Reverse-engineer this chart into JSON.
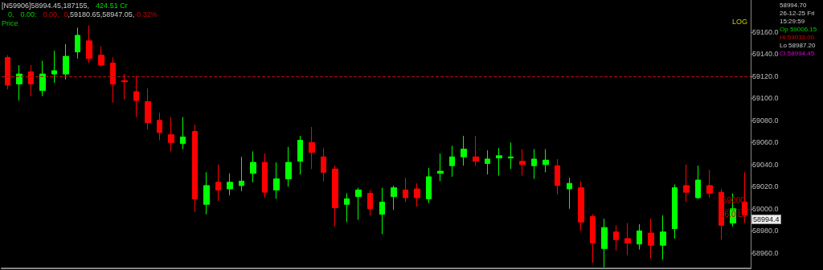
{
  "chart_data": {
    "type": "candlestick",
    "title": "[N59906]58994.45,187155,",
    "annotations": [
      "424.51 Cr",
      "0,",
      "0.00:",
      "0.00,",
      "0",
      ",59180.65,58947.05,",
      "-0.32%",
      "Price",
      "LOG",
      "58994.70",
      "26-12-25 Fri",
      "15:29:59",
      "Op 59006.15",
      "Hi 59033.00",
      "Lo 58987.20",
      "Cl 58994.45",
      "16.0 Lk",
      "58994.4"
    ],
    "categories": [
      null,
      null,
      null,
      null,
      null,
      null,
      null,
      null,
      null,
      null,
      null,
      null,
      null,
      null,
      null,
      null,
      null,
      null,
      null,
      null,
      null,
      null,
      null,
      null,
      null,
      null,
      null,
      null,
      null,
      null,
      null,
      null,
      null,
      null,
      null,
      null,
      null,
      null,
      null,
      null,
      null,
      null,
      null,
      null,
      null,
      null,
      null,
      null,
      null,
      null,
      null,
      null,
      null,
      null,
      null,
      null,
      null,
      null,
      null,
      null,
      null,
      null,
      null,
      null
    ],
    "ohlc": [
      [
        59137,
        59139,
        59108,
        59112
      ],
      [
        59113,
        59130,
        59098,
        59122
      ],
      [
        59124,
        59130,
        59102,
        59113
      ],
      [
        59107,
        59134,
        59102,
        59122
      ],
      [
        59122,
        59143,
        59114,
        59125
      ],
      [
        59122,
        59149,
        59117,
        59138
      ],
      [
        59142,
        59164,
        59136,
        59157
      ],
      [
        59152,
        59166,
        59132,
        59136
      ],
      [
        59139,
        59147,
        59129,
        59130
      ],
      [
        59132,
        59137,
        59096,
        59113
      ],
      [
        59116,
        59122,
        59099,
        59115
      ],
      [
        59106,
        59120,
        59083,
        59098
      ],
      [
        59097,
        59109,
        59072,
        59078
      ],
      [
        59080,
        59087,
        59062,
        59069
      ],
      [
        59067,
        59083,
        59052,
        59060
      ],
      [
        59059,
        59083,
        59054,
        59065
      ],
      [
        59070,
        59076,
        58997,
        59009
      ],
      [
        59004,
        59033,
        58995,
        59021
      ],
      [
        59024,
        59040,
        59007,
        59017
      ],
      [
        59018,
        59032,
        59012,
        59024
      ],
      [
        59021,
        59047,
        59016,
        59025
      ],
      [
        59032,
        59052,
        59024,
        59042
      ],
      [
        59042,
        59050,
        59010,
        59015
      ],
      [
        59017,
        59042,
        59009,
        59027
      ],
      [
        59027,
        59056,
        59020,
        59042
      ],
      [
        59043,
        59066,
        59031,
        59062
      ],
      [
        59060,
        59074,
        59036,
        59051
      ],
      [
        59047,
        59055,
        59025,
        59033
      ],
      [
        59036,
        59039,
        58984,
        59001
      ],
      [
        59004,
        59014,
        58988,
        59009
      ],
      [
        59011,
        59019,
        58990,
        59017
      ],
      [
        59014,
        59017,
        58994,
        59000
      ],
      [
        58995,
        59019,
        58977,
        59006
      ],
      [
        59011,
        59021,
        58999,
        59019
      ],
      [
        59017,
        59028,
        59006,
        59010
      ],
      [
        59018,
        59023,
        59002,
        59010
      ],
      [
        59009,
        59037,
        59005,
        59029
      ],
      [
        59032,
        59050,
        59025,
        59034
      ],
      [
        59039,
        59057,
        59029,
        59047
      ],
      [
        59047,
        59066,
        59039,
        59054
      ],
      [
        59047,
        59066,
        59039,
        59043
      ],
      [
        59041,
        59053,
        59031,
        59045
      ],
      [
        59046,
        59055,
        59030,
        59048
      ],
      [
        59046,
        59060,
        59036,
        59047
      ],
      [
        59043,
        59054,
        59030,
        59040
      ],
      [
        59039,
        59054,
        59027,
        59045
      ],
      [
        59040,
        59054,
        59033,
        59044
      ],
      [
        59039,
        59045,
        59013,
        59021
      ],
      [
        59018,
        59028,
        59000,
        59023
      ],
      [
        59019,
        59025,
        58980,
        58988
      ],
      [
        58993,
        58995,
        58951,
        58969
      ],
      [
        58964,
        58991,
        58947,
        58983
      ],
      [
        58979,
        58985,
        58962,
        58972
      ],
      [
        58973,
        58987,
        58958,
        58969
      ],
      [
        58968,
        58986,
        58963,
        58980
      ],
      [
        58978,
        58991,
        58955,
        58967
      ],
      [
        58967,
        58994,
        58954,
        58979
      ],
      [
        58982,
        59022,
        58973,
        59019
      ],
      [
        59021,
        59040,
        59006,
        59015
      ],
      [
        59010,
        59039,
        59009,
        59026
      ],
      [
        59021,
        59035,
        59010,
        59014
      ],
      [
        59015,
        59018,
        58972,
        58985
      ],
      [
        58987,
        59014,
        58984,
        59000
      ],
      [
        59006.15,
        59033,
        58987.2,
        58994.45
      ]
    ],
    "colors": [
      "#ff0000",
      "#00ff00",
      "#ff0000",
      "#00ff00",
      "#00ff00",
      "#00ff00",
      "#00ff00",
      "#ff0000",
      "#ff0000",
      "#ff0000",
      "#ff0000",
      "#ff0000",
      "#ff0000",
      "#ff0000",
      "#ff0000",
      "#00ff00",
      "#ff0000",
      "#00ff00",
      "#ff0000",
      "#00ff00",
      "#00ff00",
      "#00ff00",
      "#ff0000",
      "#00ff00",
      "#00ff00",
      "#00ff00",
      "#ff0000",
      "#ff0000",
      "#ff0000",
      "#00ff00",
      "#00ff00",
      "#ff0000",
      "#00ff00",
      "#00ff00",
      "#ff0000",
      "#ff0000",
      "#00ff00",
      "#00ff00",
      "#00ff00",
      "#00ff00",
      "#ff0000",
      "#00ff00",
      "#00ff00",
      "#00ff00",
      "#ff0000",
      "#00ff00",
      "#00ff00",
      "#ff0000",
      "#00ff00",
      "#ff0000",
      "#ff0000",
      "#00ff00",
      "#ff0000",
      "#ff0000",
      "#00ff00",
      "#ff0000",
      "#00ff00",
      "#00ff00",
      "#ff0000",
      "#00ff00",
      "#ff0000",
      "#ff0000",
      "#00ff00",
      "#ff0000"
    ],
    "ylim": [
      58946,
      59189
    ],
    "yticks": [
      {
        "value": 58960,
        "label": "58960.0"
      },
      {
        "value": 58980,
        "label": "58980.0"
      },
      {
        "value": 59000,
        "label": "59000.0"
      },
      {
        "value": 59020,
        "label": "59020.0"
      },
      {
        "value": 59040,
        "label": "59040.0"
      },
      {
        "value": 59060,
        "label": "59060.0"
      },
      {
        "value": 59080,
        "label": "59080.0"
      },
      {
        "value": 59100,
        "label": "59100.0"
      },
      {
        "value": 59120,
        "label": "59120.0"
      },
      {
        "value": 59140,
        "label": "59140.0"
      },
      {
        "value": 59160,
        "label": "59160.0"
      }
    ],
    "ref_lines": [
      {
        "axis": "y",
        "value": 59120,
        "color": "#b01010",
        "line_style": "dashed"
      },
      {
        "axis": "y",
        "value": 59000,
        "label": "59000",
        "color": "#c00000",
        "line_style": "dotted"
      }
    ],
    "grid": false
  }
}
